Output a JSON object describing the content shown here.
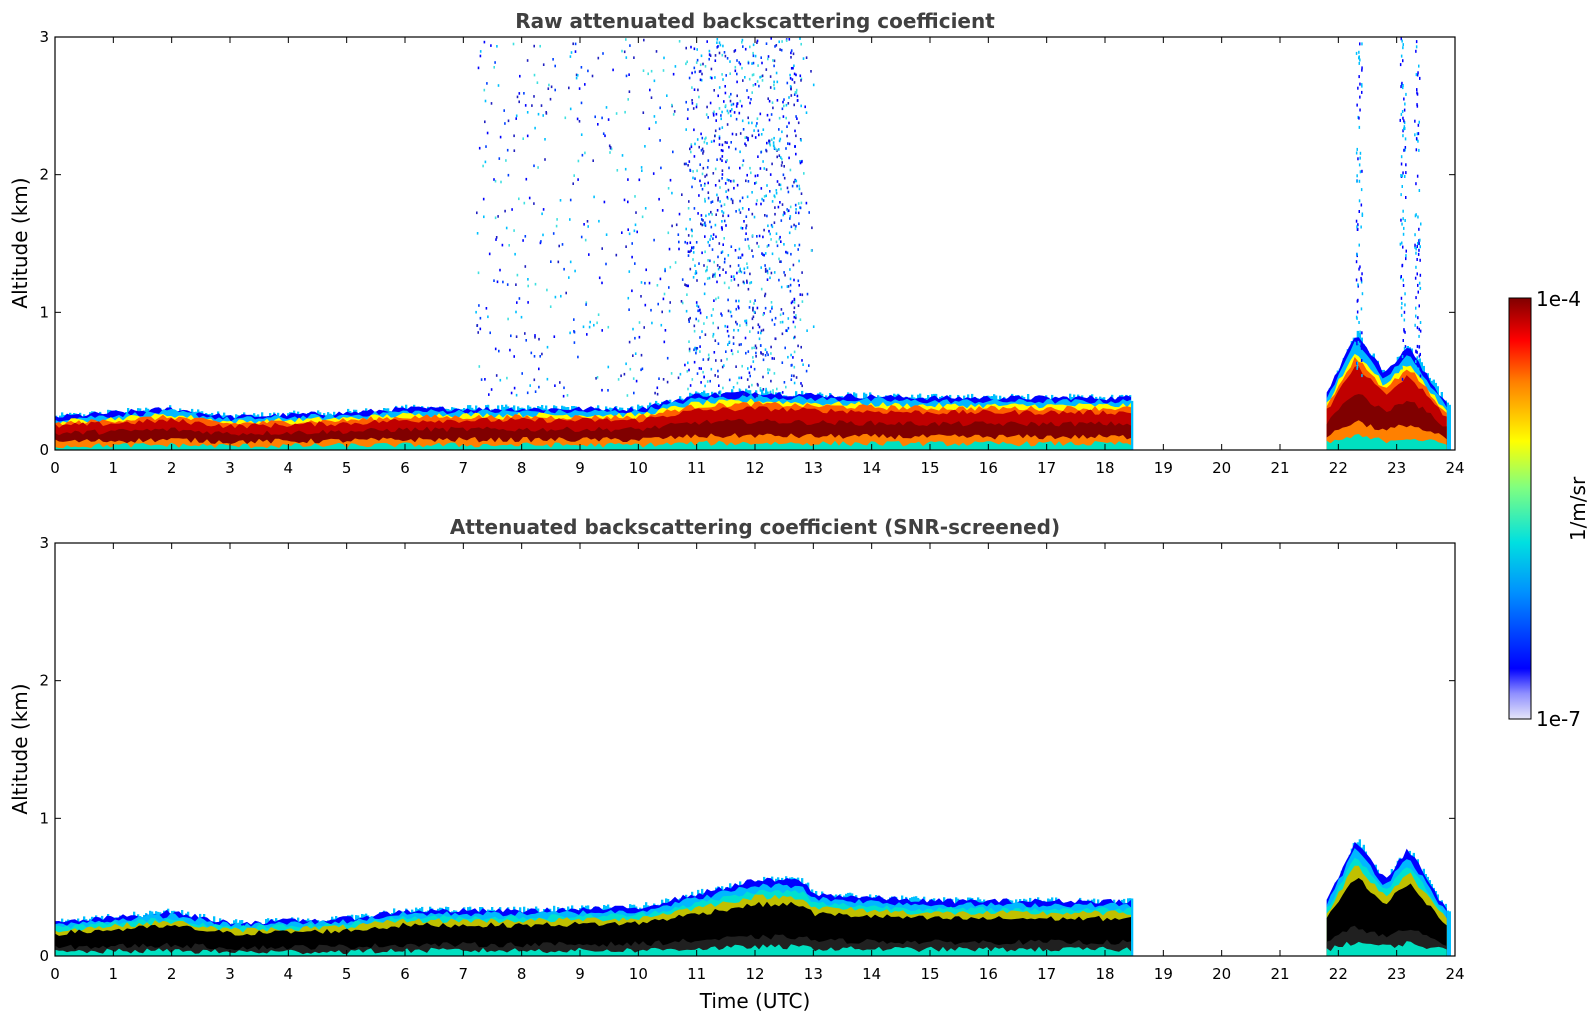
{
  "chart_data": [
    {
      "type": "heatmap",
      "title": "Raw attenuated backscattering coefficient",
      "xlabel": "",
      "ylabel": "Altitude (km)",
      "xlim": [
        0,
        24
      ],
      "ylim": [
        0,
        3
      ],
      "x_ticks": [
        "0",
        "1",
        "2",
        "3",
        "4",
        "5",
        "6",
        "7",
        "8",
        "9",
        "10",
        "11",
        "12",
        "13",
        "14",
        "15",
        "16",
        "17",
        "18",
        "19",
        "20",
        "21",
        "22",
        "23",
        "24"
      ],
      "y_ticks": [
        "0",
        "1",
        "2",
        "3"
      ],
      "valid_periods": [
        [
          0,
          18.45
        ],
        [
          21.8,
          23.9
        ]
      ],
      "layer_top_km": [
        [
          0,
          0.24
        ],
        [
          2,
          0.3
        ],
        [
          3,
          0.24
        ],
        [
          5,
          0.27
        ],
        [
          6,
          0.3
        ],
        [
          8,
          0.3
        ],
        [
          10,
          0.3
        ],
        [
          11,
          0.4
        ],
        [
          12,
          0.42
        ],
        [
          13,
          0.4
        ],
        [
          15,
          0.38
        ],
        [
          18.4,
          0.38
        ],
        [
          21.8,
          0.4
        ],
        [
          22.3,
          0.85
        ],
        [
          22.8,
          0.55
        ],
        [
          23.2,
          0.75
        ],
        [
          23.9,
          0.3
        ]
      ],
      "noise_region_hours": [
        7.2,
        13.0
      ]
    },
    {
      "type": "heatmap",
      "title": "Attenuated backscattering coefficient (SNR-screened)",
      "xlabel": "Time (UTC)",
      "ylabel": "Altitude (km)",
      "xlim": [
        0,
        24
      ],
      "ylim": [
        0,
        3
      ],
      "x_ticks": [
        "0",
        "1",
        "2",
        "3",
        "4",
        "5",
        "6",
        "7",
        "8",
        "9",
        "10",
        "11",
        "12",
        "13",
        "14",
        "15",
        "16",
        "17",
        "18",
        "19",
        "20",
        "21",
        "22",
        "23",
        "24"
      ],
      "y_ticks": [
        "0",
        "1",
        "2",
        "3"
      ],
      "valid_periods": [
        [
          0,
          18.45
        ],
        [
          21.8,
          23.9
        ]
      ],
      "layer_top_km": [
        [
          0,
          0.24
        ],
        [
          2,
          0.32
        ],
        [
          3,
          0.24
        ],
        [
          5,
          0.27
        ],
        [
          6,
          0.33
        ],
        [
          8,
          0.33
        ],
        [
          10,
          0.35
        ],
        [
          11,
          0.45
        ],
        [
          12,
          0.55
        ],
        [
          12.8,
          0.55
        ],
        [
          13,
          0.45
        ],
        [
          15,
          0.4
        ],
        [
          18.4,
          0.4
        ],
        [
          21.8,
          0.4
        ],
        [
          22.3,
          0.85
        ],
        [
          22.8,
          0.55
        ],
        [
          23.2,
          0.78
        ],
        [
          23.9,
          0.3
        ]
      ],
      "noise_region_hours": []
    }
  ],
  "colorbar": {
    "max_label": "1e-4",
    "min_label": "1e-7",
    "unit_label": "1/m/sr",
    "colors": [
      "#e6e6f8",
      "#0000ff",
      "#00a0ff",
      "#00e0d0",
      "#80ff80",
      "#ffff00",
      "#ff8000",
      "#ff0000",
      "#800000"
    ]
  }
}
